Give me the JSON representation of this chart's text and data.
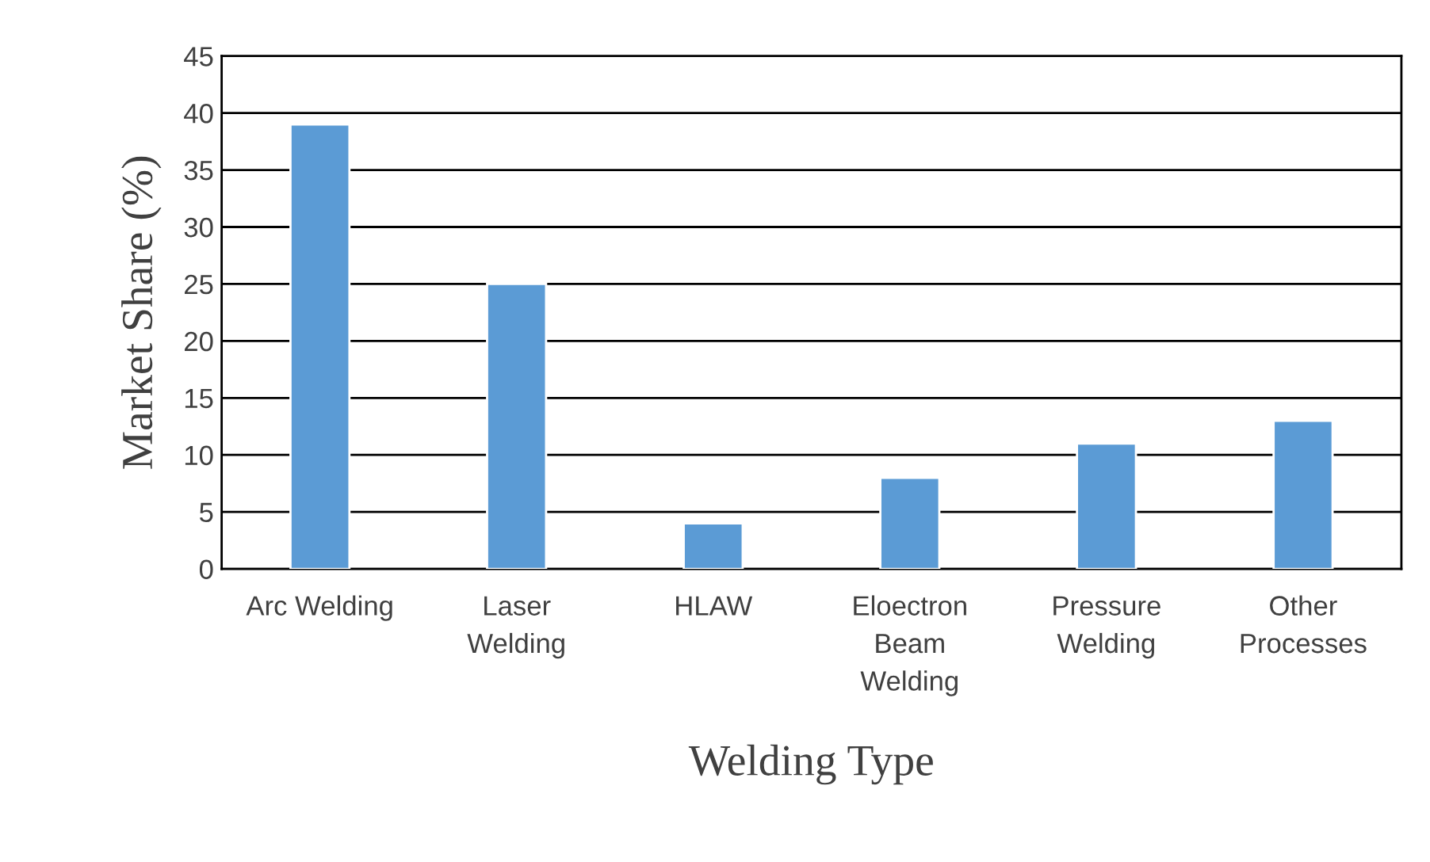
{
  "chart_data": {
    "type": "bar",
    "categories": [
      "Arc Welding",
      "Laser\nWelding",
      "HLAW",
      "Eloectron\nBeam\nWelding",
      "Pressure\nWelding",
      "Other\nProcesses"
    ],
    "values": [
      39,
      25,
      4,
      8,
      11,
      13
    ],
    "color": "#5b9bd5",
    "xlabel": "Welding Type",
    "ylabel": "Market Share (%)",
    "ylim": [
      0,
      45
    ],
    "yticks": [
      0,
      5,
      10,
      15,
      20,
      25,
      30,
      35,
      40,
      45
    ],
    "grid": "y"
  }
}
